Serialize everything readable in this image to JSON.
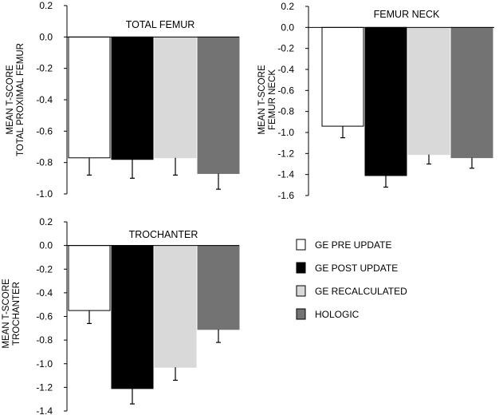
{
  "colors": {
    "ge_pre": "#ffffff",
    "ge_post": "#000000",
    "ge_recalc": "#d9d9d9",
    "hologic": "#737373",
    "axis": "#000000"
  },
  "legend": [
    {
      "label": "GE PRE UPDATE",
      "color": "#ffffff"
    },
    {
      "label": "GE POST UPDATE",
      "color": "#000000"
    },
    {
      "label": "GE RECALCULATED",
      "color": "#d9d9d9"
    },
    {
      "label": "HOLOGIC",
      "color": "#737373"
    }
  ],
  "chart_data": [
    {
      "type": "bar",
      "title": "TOTAL FEMUR",
      "ylabel": [
        "MEAN T-SCORE",
        "TOTAL PROXIMAL FEMUR"
      ],
      "ylim": [
        -1.0,
        0.2
      ],
      "yticks": [
        "0.2",
        "0.0",
        "-0.2",
        "-0.4",
        "-0.6",
        "-0.8",
        "-1.0"
      ],
      "series": [
        {
          "name": "GE PRE UPDATE",
          "value": -0.77,
          "error": 0.11
        },
        {
          "name": "GE POST UPDATE",
          "value": -0.78,
          "error": 0.12
        },
        {
          "name": "GE RECALCULATED",
          "value": -0.77,
          "error": 0.11
        },
        {
          "name": "HOLOGIC",
          "value": -0.87,
          "error": 0.1
        }
      ]
    },
    {
      "type": "bar",
      "title": "FEMUR NECK",
      "ylabel": [
        "MEAN T-SCORE",
        "FEMUR NECK"
      ],
      "ylim": [
        -1.6,
        0.2
      ],
      "yticks": [
        "0.2",
        "0.0",
        "-0.2",
        "-0.4",
        "-0.6",
        "-0.8",
        "-1.0",
        "-1.2",
        "-1.4",
        "-1.6"
      ],
      "series": [
        {
          "name": "GE PRE UPDATE",
          "value": -0.94,
          "error": 0.11
        },
        {
          "name": "GE POST UPDATE",
          "value": -1.41,
          "error": 0.11
        },
        {
          "name": "GE RECALCULATED",
          "value": -1.21,
          "error": 0.09
        },
        {
          "name": "HOLOGIC",
          "value": -1.24,
          "error": 0.1
        }
      ]
    },
    {
      "type": "bar",
      "title": "TROCHANTER",
      "ylabel": [
        "MEAN T-SCORE",
        "TROCHANTER"
      ],
      "ylim": [
        -1.4,
        0.2
      ],
      "yticks": [
        "0.2",
        "0.0",
        "-0.2",
        "-0.4",
        "-0.6",
        "-0.8",
        "-1.0",
        "-1.2",
        "-1.4"
      ],
      "series": [
        {
          "name": "GE PRE UPDATE",
          "value": -0.55,
          "error": 0.11
        },
        {
          "name": "GE POST UPDATE",
          "value": -1.21,
          "error": 0.13
        },
        {
          "name": "GE RECALCULATED",
          "value": -1.03,
          "error": 0.11
        },
        {
          "name": "HOLOGIC",
          "value": -0.71,
          "error": 0.11
        }
      ]
    }
  ]
}
